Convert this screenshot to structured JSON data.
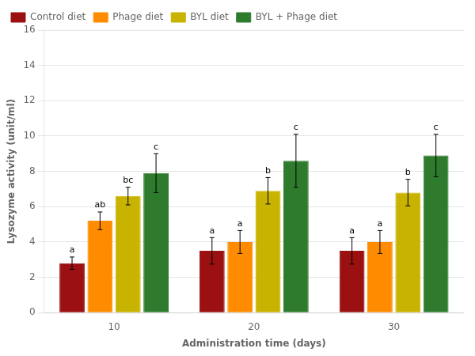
{
  "chart_data": {
    "type": "bar",
    "xlabel": "Administration time (days)",
    "ylabel": "Lysozyme activity (unit/ml)",
    "categories": [
      "10",
      "20",
      "30"
    ],
    "series": [
      {
        "name": "Control diet",
        "color": "#9B1010",
        "values": [
          2.8,
          3.5,
          3.5
        ],
        "errors": [
          0.35,
          0.75,
          0.75
        ],
        "annotations": [
          "a",
          "a",
          "a"
        ]
      },
      {
        "name": "Phage diet",
        "color": "#FF8C00",
        "values": [
          5.2,
          4.0,
          4.0
        ],
        "errors": [
          0.5,
          0.65,
          0.65
        ],
        "annotations": [
          "ab",
          "a",
          "a"
        ]
      },
      {
        "name": "BYL diet",
        "color": "#C8B400",
        "values": [
          6.6,
          6.9,
          6.8
        ],
        "errors": [
          0.5,
          0.75,
          0.75
        ],
        "annotations": [
          "bc",
          "b",
          "b"
        ]
      },
      {
        "name": "BYL + Phage diet",
        "color": "#2E7B2E",
        "values": [
          7.9,
          8.6,
          8.9
        ],
        "errors": [
          1.1,
          1.5,
          1.2
        ],
        "annotations": [
          "c",
          "c",
          "c"
        ]
      }
    ],
    "ylim": [
      0,
      16
    ],
    "yticks": [
      0,
      2,
      4,
      6,
      8,
      10,
      12,
      14,
      16
    ],
    "grid": true,
    "legend": "upper left"
  }
}
